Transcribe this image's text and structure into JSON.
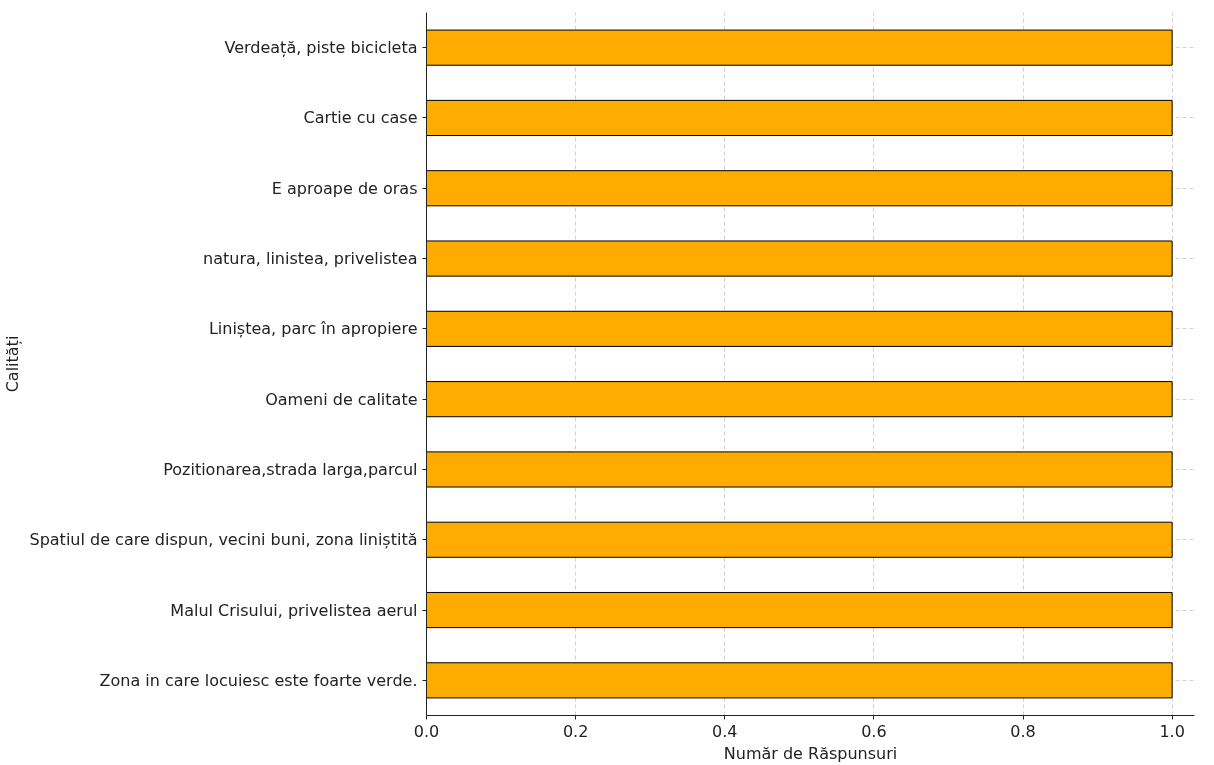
{
  "chart_data": {
    "type": "bar",
    "orientation": "horizontal",
    "xlabel": "Număr de Răspunsuri",
    "ylabel": "Calități",
    "categories": [
      "Verdeață, piste bicicleta",
      "Cartie cu case",
      "E aproape de oras",
      "natura, linistea, privelistea",
      "Liniștea, parc în apropiere",
      "Oameni de calitate",
      "Pozitionarea,strada larga,parcul",
      "Spatiul de care dispun, vecini buni, zona liniștită",
      "Malul Crisului, privelistea aerul",
      "Zona in care locuiesc este foarte verde."
    ],
    "values": [
      1,
      1,
      1,
      1,
      1,
      1,
      1,
      1,
      1,
      1
    ],
    "color": "#ffab00",
    "xlim": [
      0,
      1.03
    ],
    "xticks": [
      {
        "value": 0,
        "label": "0.0"
      },
      0.2,
      0.4,
      0.6,
      0.8,
      {
        "value": 1,
        "label": "1.0"
      }
    ],
    "grid": true
  }
}
